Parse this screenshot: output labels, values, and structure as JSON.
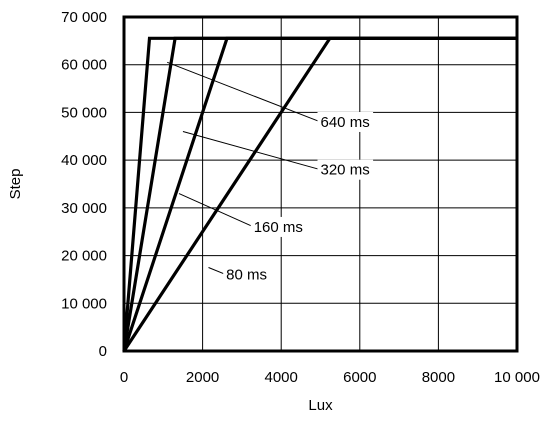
{
  "chart_data": {
    "type": "line",
    "xlabel": "Lux",
    "ylabel": "Step",
    "xlim": [
      0,
      10000
    ],
    "ylim": [
      0,
      70000
    ],
    "grid": true,
    "x_ticks": [
      {
        "value": 0,
        "label": "0"
      },
      {
        "value": 2000,
        "label": "2000"
      },
      {
        "value": 4000,
        "label": "4000"
      },
      {
        "value": 6000,
        "label": "6000"
      },
      {
        "value": 8000,
        "label": "8000"
      },
      {
        "value": 10000,
        "label": "10 000"
      }
    ],
    "y_ticks": [
      {
        "value": 0,
        "label": "0"
      },
      {
        "value": 10000,
        "label": "10 000"
      },
      {
        "value": 20000,
        "label": "20 000"
      },
      {
        "value": 30000,
        "label": "30 000"
      },
      {
        "value": 40000,
        "label": "40 000"
      },
      {
        "value": 50000,
        "label": "50 000"
      },
      {
        "value": 60000,
        "label": "60 000"
      },
      {
        "value": 70000,
        "label": "70 000"
      }
    ],
    "series": [
      {
        "name": "640 ms",
        "points": [
          [
            0,
            0
          ],
          [
            650,
            65535
          ],
          [
            10000,
            65535
          ]
        ]
      },
      {
        "name": "320 ms",
        "points": [
          [
            0,
            0
          ],
          [
            1300,
            65535
          ],
          [
            10000,
            65535
          ]
        ]
      },
      {
        "name": "160 ms",
        "points": [
          [
            0,
            0
          ],
          [
            2620,
            65535
          ],
          [
            10000,
            65535
          ]
        ]
      },
      {
        "name": "80 ms",
        "points": [
          [
            0,
            0
          ],
          [
            5240,
            65535
          ],
          [
            10000,
            65535
          ]
        ]
      }
    ],
    "annotations": [
      {
        "text": "640 ms",
        "series": 0,
        "label_at": [
          5000,
          48000
        ],
        "points_to": [
          1100,
          60500
        ]
      },
      {
        "text": "320 ms",
        "series": 1,
        "label_at": [
          5000,
          38000
        ],
        "points_to": [
          1500,
          46000
        ]
      },
      {
        "text": "160 ms",
        "series": 2,
        "label_at": [
          3300,
          26000
        ],
        "points_to": [
          1400,
          33000
        ]
      },
      {
        "text": "80 ms",
        "series": 3,
        "label_at": [
          2600,
          16000
        ],
        "points_to": [
          2150,
          17500
        ]
      }
    ]
  }
}
